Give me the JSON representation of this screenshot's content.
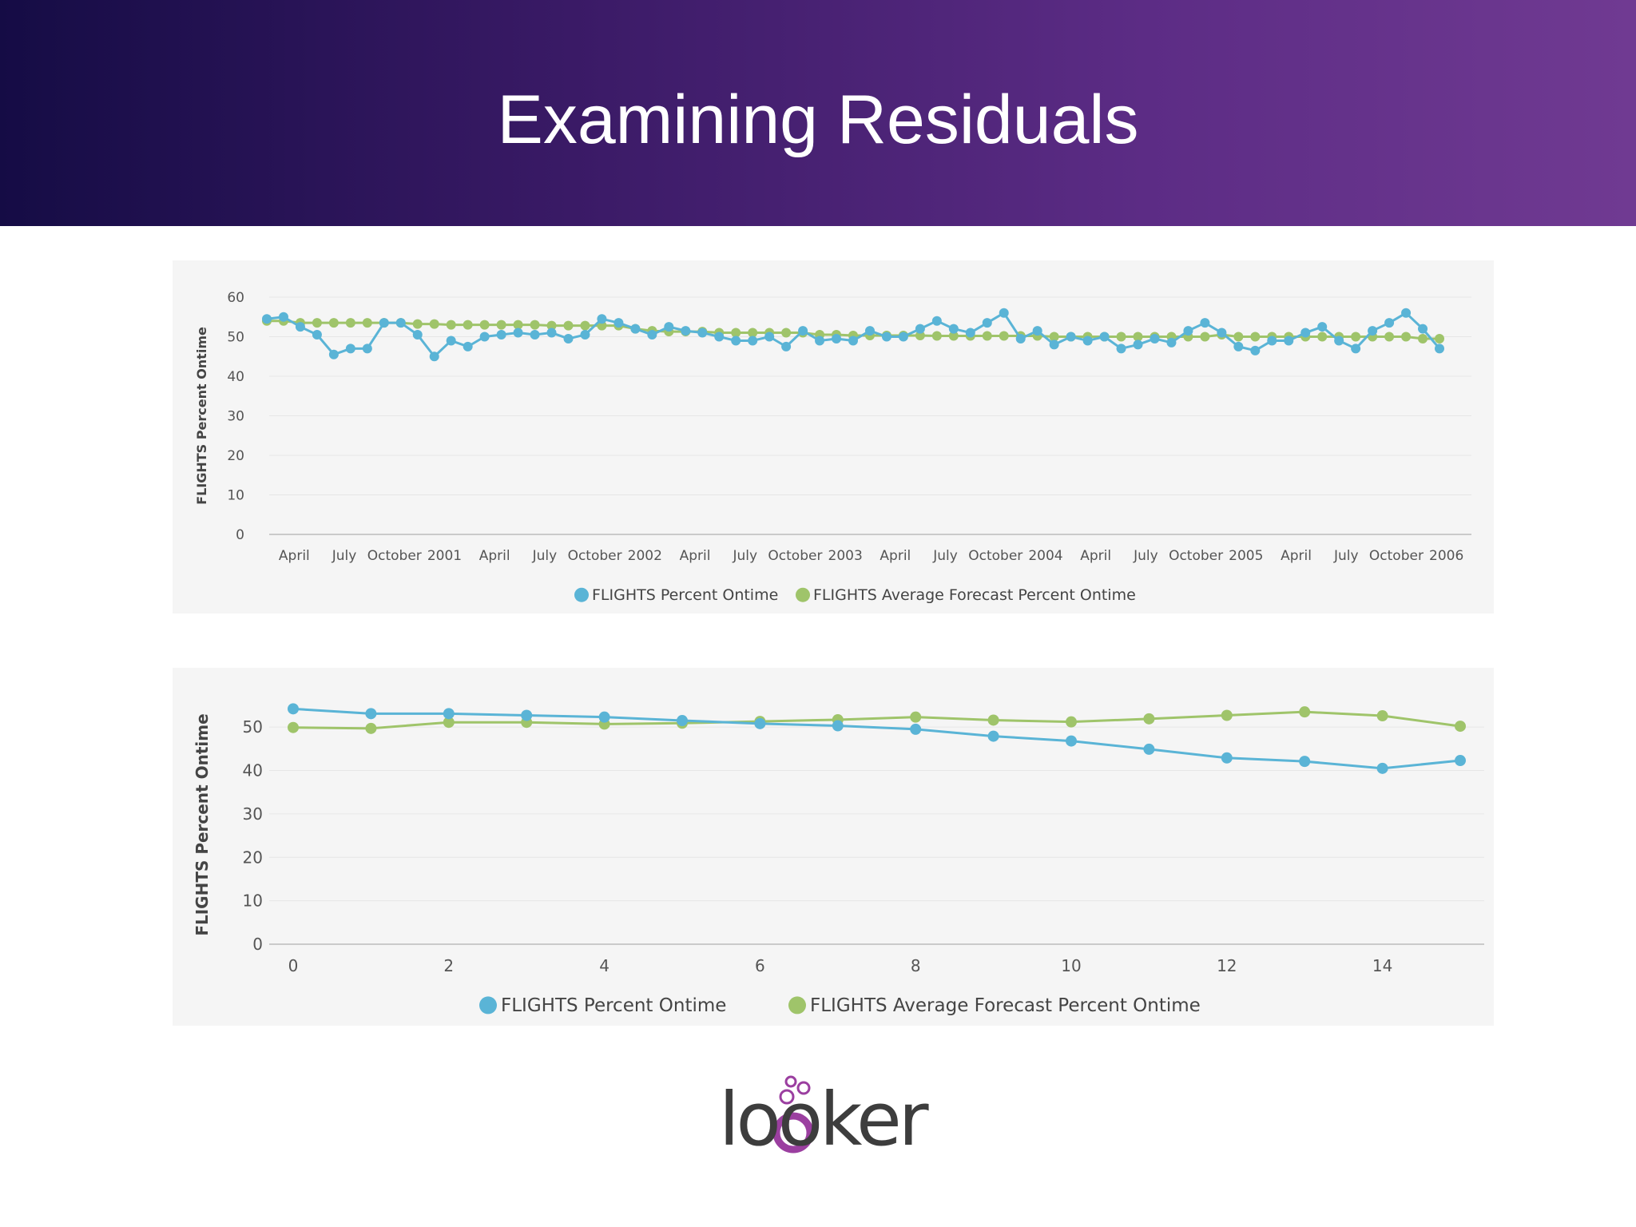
{
  "slide": {
    "title": "Examining Residuals"
  },
  "logo": {
    "text": "looker"
  },
  "colors": {
    "percent_ontime": "#5ab4d6",
    "forecast": "#9fc46a",
    "accent_logo": "#9b3fa0"
  },
  "chart_data": [
    {
      "type": "line",
      "ylabel": "FLIGHTS Percent Ontime",
      "ylim": [
        0,
        60
      ],
      "yticks": [
        "0",
        "10",
        "20",
        "30",
        "40",
        "50",
        "60"
      ],
      "xtick_labels": [
        "April",
        "July",
        "October",
        "2001",
        "April",
        "July",
        "October",
        "2002",
        "April",
        "July",
        "October",
        "2003",
        "April",
        "July",
        "October",
        "2004",
        "April",
        "July",
        "October",
        "2005",
        "April",
        "July",
        "October",
        "2006"
      ],
      "series": [
        {
          "name": "FLIGHTS Percent Ontime",
          "color": "#5ab4d6",
          "values": [
            54.5,
            55,
            52.5,
            50.5,
            45.5,
            47,
            47,
            53.5,
            53.5,
            50.5,
            45,
            49,
            47.5,
            50,
            50.5,
            51,
            50.5,
            51,
            49.5,
            50.5,
            54.5,
            53.5,
            52,
            50.5,
            52.5,
            51.5,
            51,
            50,
            49,
            49,
            50,
            47.5,
            51.5,
            49,
            49.5,
            49,
            51.5,
            50,
            50,
            52,
            54,
            52,
            51,
            53.5,
            56,
            49.5,
            51.5,
            48,
            50,
            49,
            50,
            47,
            48,
            49.5,
            48.5,
            51.5,
            53.5,
            51,
            47.5,
            46.5,
            49,
            49,
            51,
            52.5,
            49,
            47,
            51.5,
            53.5,
            56,
            52,
            47
          ]
        },
        {
          "name": "FLIGHTS Average Forecast Percent Ontime",
          "color": "#9fc46a",
          "values": [
            54,
            54,
            53.5,
            53.5,
            53.5,
            53.5,
            53.5,
            53.5,
            53.5,
            53.2,
            53.2,
            53,
            53,
            53,
            53,
            53,
            53,
            52.8,
            52.8,
            52.8,
            52.8,
            52.8,
            52,
            51.5,
            51.3,
            51.3,
            51.3,
            51,
            51,
            51,
            51,
            51,
            51,
            50.5,
            50.5,
            50.3,
            50.3,
            50.3,
            50.3,
            50.3,
            50.2,
            50.2,
            50.2,
            50.2,
            50.2,
            50.2,
            50.2,
            50,
            50,
            50,
            50,
            50,
            50,
            50,
            50,
            50,
            50,
            50.5,
            50,
            50,
            50,
            50,
            50,
            50,
            50,
            50,
            50,
            50,
            50,
            49.5,
            49.5
          ]
        }
      ]
    },
    {
      "type": "line",
      "ylabel": "FLIGHTS Percent Ontime",
      "ylim": [
        0,
        55
      ],
      "yticks": [
        "0",
        "10",
        "20",
        "30",
        "40",
        "50"
      ],
      "x": [
        0,
        1,
        2,
        3,
        4,
        5,
        6,
        7,
        8,
        9,
        10,
        11,
        12,
        13,
        14,
        15
      ],
      "xticks": [
        "0",
        "2",
        "4",
        "6",
        "8",
        "10",
        "12",
        "14"
      ],
      "series": [
        {
          "name": "FLIGHTS Percent Ontime",
          "color": "#5ab4d6",
          "values": [
            54.2,
            53.1,
            53.1,
            52.7,
            52.3,
            51.5,
            50.8,
            50.3,
            49.5,
            47.9,
            46.8,
            44.9,
            42.9,
            42.1,
            40.5,
            42.3
          ]
        },
        {
          "name": "FLIGHTS Average Forecast Percent Ontime",
          "color": "#9fc46a",
          "values": [
            49.9,
            49.7,
            51.1,
            51.1,
            50.7,
            50.9,
            51.3,
            51.7,
            52.3,
            51.6,
            51.2,
            51.9,
            52.7,
            53.5,
            52.6,
            50.2
          ]
        }
      ]
    }
  ]
}
